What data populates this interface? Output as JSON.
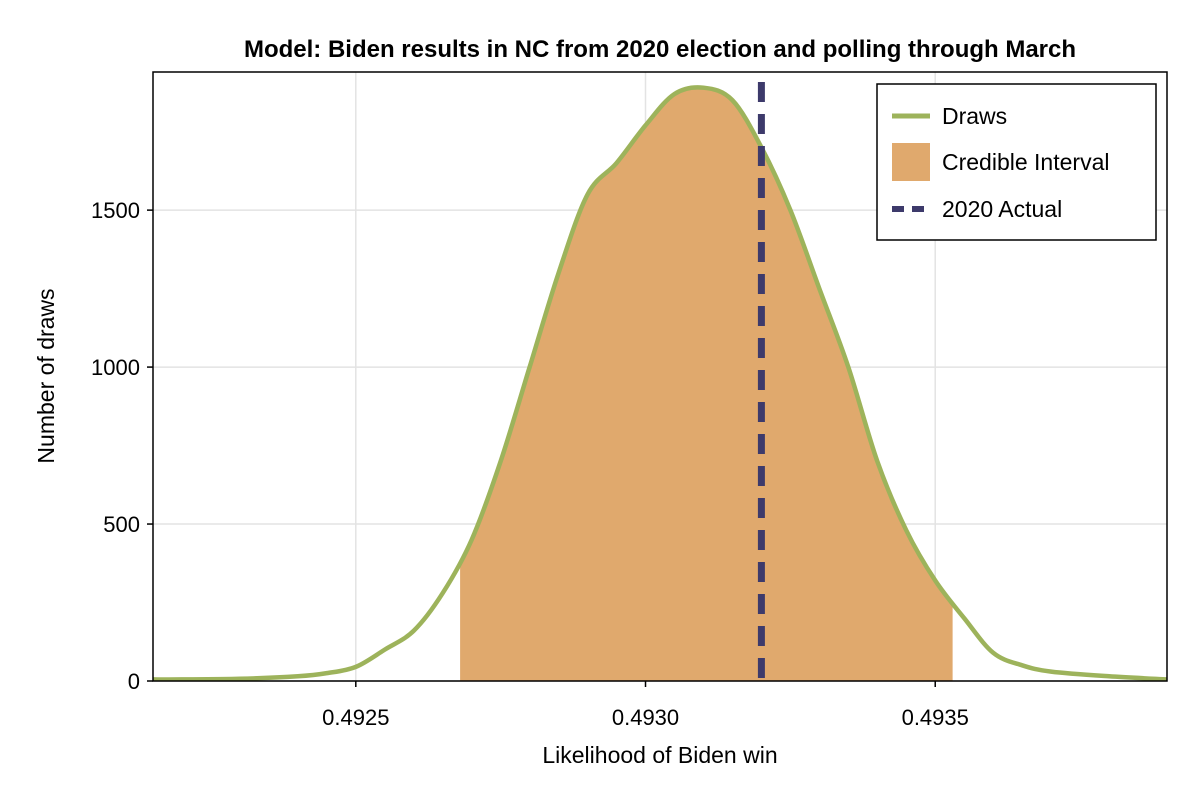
{
  "chart_data": {
    "type": "area",
    "title": "Model: Biden results in NC from 2020 election and polling through March",
    "xlabel": "Likelihood of Biden win",
    "ylabel": "Number of draws",
    "xlim": [
      0.49215,
      0.4939
    ],
    "ylim": [
      0,
      1940
    ],
    "x_ticks": [
      0.4925,
      0.493,
      0.4935
    ],
    "x_tick_labels": [
      "0.4925",
      "0.4930",
      "0.4935"
    ],
    "y_ticks": [
      0,
      500,
      1000,
      1500
    ],
    "y_tick_labels": [
      "0",
      "500",
      "1000",
      "1500"
    ],
    "grid": true,
    "legend_position": "top-right",
    "series": [
      {
        "name": "Draws",
        "type": "line",
        "color": "#9db35b",
        "x": [
          0.49215,
          0.4922,
          0.4923,
          0.4924,
          0.49245,
          0.4925,
          0.49255,
          0.4926,
          0.49265,
          0.4927,
          0.49275,
          0.4928,
          0.49285,
          0.4929,
          0.49295,
          0.493,
          0.49305,
          0.4931,
          0.49315,
          0.4932,
          0.49325,
          0.4933,
          0.49335,
          0.4934,
          0.49345,
          0.4935,
          0.49355,
          0.4936,
          0.49365,
          0.4937,
          0.4938,
          0.4939
        ],
        "y": [
          5,
          5,
          7,
          15,
          25,
          45,
          100,
          160,
          280,
          450,
          700,
          1000,
          1300,
          1550,
          1650,
          1770,
          1870,
          1890,
          1850,
          1700,
          1500,
          1250,
          1000,
          700,
          480,
          320,
          200,
          90,
          50,
          30,
          15,
          5
        ]
      },
      {
        "name": "Credible Interval",
        "type": "area",
        "color": "#e0a96d",
        "x_range": [
          0.49268,
          0.49353
        ]
      },
      {
        "name": "2020 Actual",
        "type": "vline",
        "color": "#3d3a6b",
        "x": 0.4932
      }
    ]
  }
}
